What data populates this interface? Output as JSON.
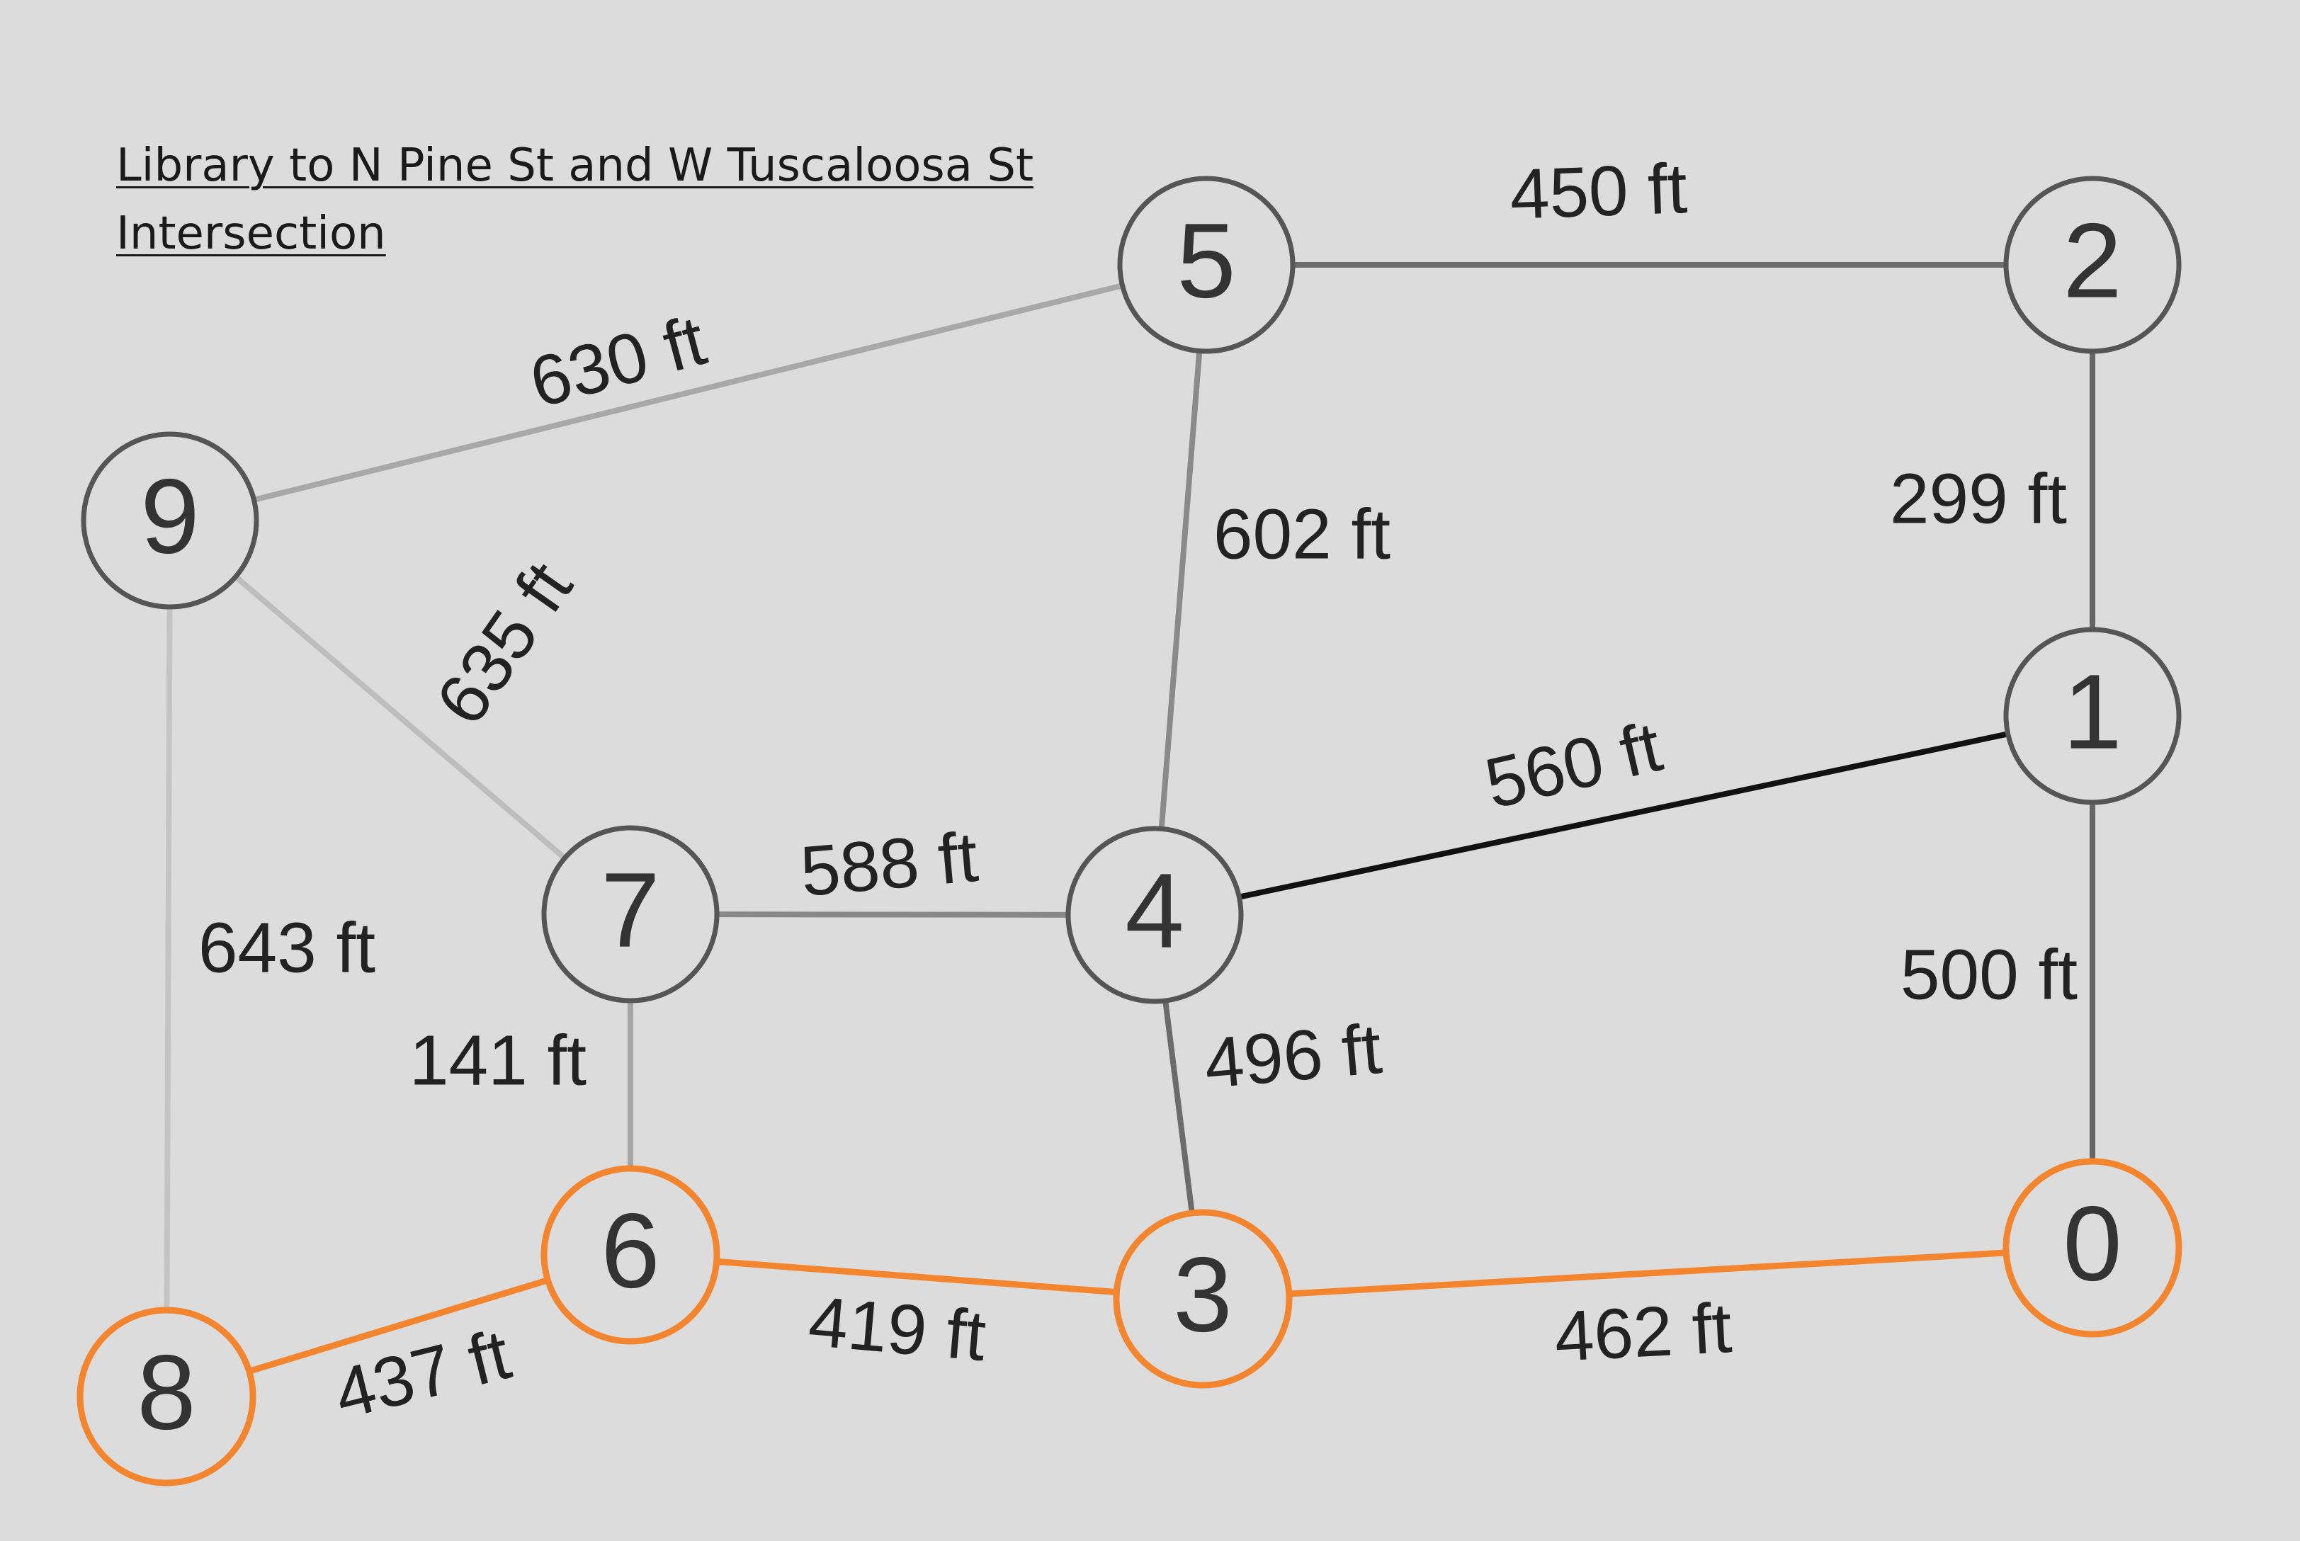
{
  "title": {
    "line1": "Library to N Pine St and W Tuscaloosa St",
    "line2": "Intersection"
  },
  "colors": {
    "background": "#dcdcdc",
    "node_stroke": "#555555",
    "highlight": "#f2852e",
    "label_text": "#222222"
  },
  "nodes": [
    {
      "id": "0",
      "label": "0",
      "highlight": true
    },
    {
      "id": "1",
      "label": "1",
      "highlight": false
    },
    {
      "id": "2",
      "label": "2",
      "highlight": false
    },
    {
      "id": "3",
      "label": "3",
      "highlight": true
    },
    {
      "id": "4",
      "label": "4",
      "highlight": false
    },
    {
      "id": "5",
      "label": "5",
      "highlight": false
    },
    {
      "id": "6",
      "label": "6",
      "highlight": true
    },
    {
      "id": "7",
      "label": "7",
      "highlight": false
    },
    {
      "id": "8",
      "label": "8",
      "highlight": true
    },
    {
      "id": "9",
      "label": "9",
      "highlight": false
    }
  ],
  "edges": [
    {
      "from": "5",
      "to": "2",
      "label": "450 ft",
      "color": "#6b6b6b",
      "highlight": false
    },
    {
      "from": "9",
      "to": "5",
      "label": "630 ft",
      "color": "#a8a8a8",
      "highlight": false
    },
    {
      "from": "5",
      "to": "4",
      "label": "602 ft",
      "color": "#8a8a8a",
      "highlight": false
    },
    {
      "from": "2",
      "to": "1",
      "label": "299 ft",
      "color": "#666666",
      "highlight": false
    },
    {
      "from": "9",
      "to": "7",
      "label": "635 ft",
      "color": "#bdbdbd",
      "highlight": false
    },
    {
      "from": "4",
      "to": "1",
      "label": "560 ft",
      "color": "#111111",
      "highlight": false
    },
    {
      "from": "7",
      "to": "4",
      "label": "588 ft",
      "color": "#888888",
      "highlight": false
    },
    {
      "from": "9",
      "to": "8",
      "label": "643 ft",
      "color": "#c4c4c4",
      "highlight": false
    },
    {
      "from": "1",
      "to": "0",
      "label": "500 ft",
      "color": "#666666",
      "highlight": false
    },
    {
      "from": "7",
      "to": "6",
      "label": "141 ft",
      "color": "#a5a5a5",
      "highlight": false
    },
    {
      "from": "4",
      "to": "3",
      "label": "496 ft",
      "color": "#6b6b6b",
      "highlight": false
    },
    {
      "from": "6",
      "to": "3",
      "label": "419 ft",
      "color": "#f2852e",
      "highlight": true
    },
    {
      "from": "3",
      "to": "0",
      "label": "462 ft",
      "color": "#f2852e",
      "highlight": true
    },
    {
      "from": "8",
      "to": "6",
      "label": "437 ft",
      "color": "#f2852e",
      "highlight": true
    }
  ]
}
